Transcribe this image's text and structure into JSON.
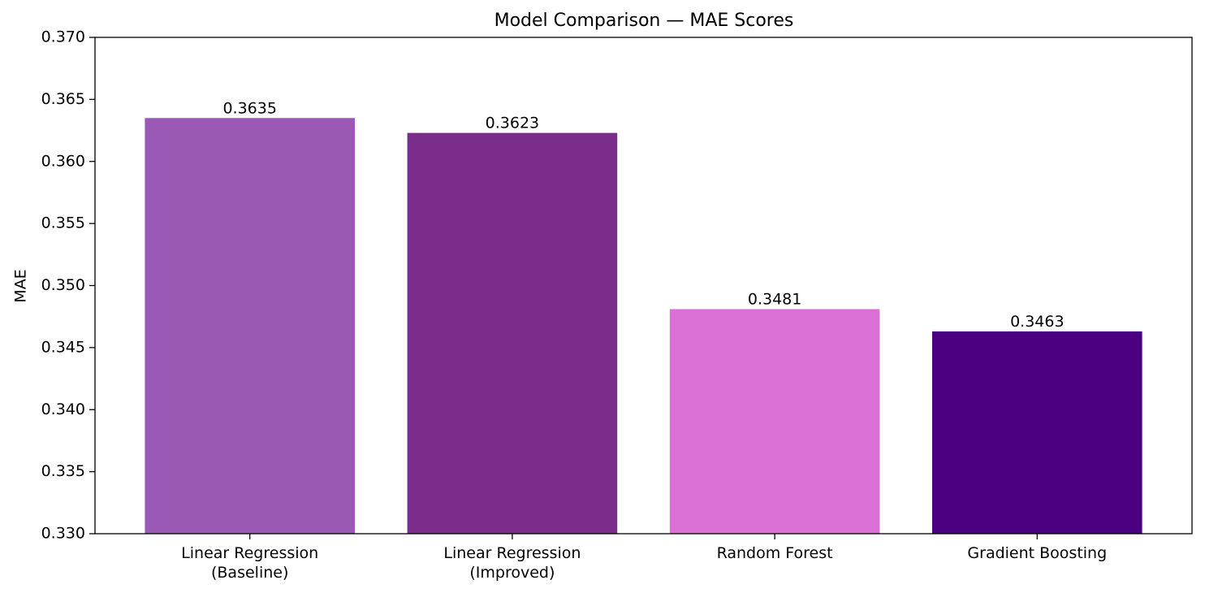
{
  "chart_data": {
    "type": "bar",
    "title": "Model Comparison — MAE Scores",
    "y_label": "MAE",
    "categories": [
      "Linear Regression\n(Baseline)",
      "Linear Regression\n(Improved)",
      "Random Forest",
      "Gradient Boosting"
    ],
    "values": [
      0.3635,
      0.3623,
      0.3481,
      0.3463
    ],
    "colors": [
      "#9b59b6",
      "#7b2d8b",
      "#da70d6",
      "#4b0082"
    ],
    "ylim": [
      0.33,
      0.37
    ],
    "yticks": [
      {
        "value": 0.33,
        "label": "0.330"
      },
      {
        "value": 0.335,
        "label": "0.335"
      },
      {
        "value": 0.34,
        "label": "0.340"
      },
      {
        "value": 0.345,
        "label": "0.345"
      },
      {
        "value": 0.35,
        "label": "0.350"
      },
      {
        "value": 0.355,
        "label": "0.355"
      },
      {
        "value": 0.36,
        "label": "0.360"
      },
      {
        "value": 0.365,
        "label": "0.365"
      },
      {
        "value": 0.37,
        "label": "0.370"
      }
    ],
    "grid": false
  }
}
